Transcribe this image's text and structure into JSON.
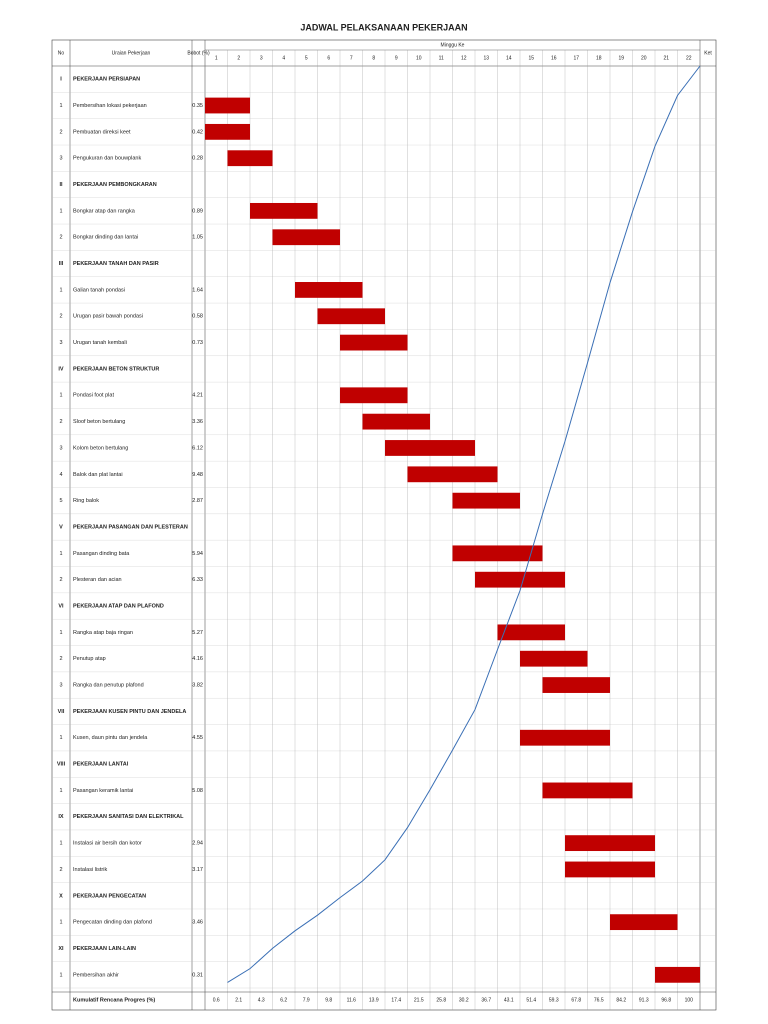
{
  "header": {
    "title": "JADWAL PELAKSANAAN PEKERJAAN",
    "no": "No",
    "item": "Uraian Pekerjaan",
    "weight": "Bobot (%)",
    "weeks_label": "Minggu Ke",
    "note": "Ket"
  },
  "weeks": [
    1,
    2,
    3,
    4,
    5,
    6,
    7,
    8,
    9,
    10,
    11,
    12,
    13,
    14,
    15,
    16,
    17,
    18,
    19,
    20,
    21,
    22
  ],
  "rows": [
    {
      "no": "I",
      "name": "PEKERJAAN PERSIAPAN",
      "weight": null,
      "start": null,
      "end": null
    },
    {
      "no": "1",
      "name": "Pembersihan lokasi pekerjaan",
      "weight": 0.35,
      "start": 1,
      "end": 2
    },
    {
      "no": "2",
      "name": "Pembuatan direksi keet",
      "weight": 0.42,
      "start": 1,
      "end": 2
    },
    {
      "no": "3",
      "name": "Pengukuran dan bouwplank",
      "weight": 0.28,
      "start": 2,
      "end": 3
    },
    {
      "no": "II",
      "name": "PEKERJAAN PEMBONGKARAN",
      "weight": null,
      "start": null,
      "end": null
    },
    {
      "no": "1",
      "name": "Bongkar atap dan rangka",
      "weight": 0.89,
      "start": 3,
      "end": 5
    },
    {
      "no": "2",
      "name": "Bongkar dinding dan lantai",
      "weight": 1.05,
      "start": 4,
      "end": 6
    },
    {
      "no": "III",
      "name": "PEKERJAAN TANAH DAN PASIR",
      "weight": null,
      "start": null,
      "end": null
    },
    {
      "no": "1",
      "name": "Galian tanah pondasi",
      "weight": 1.64,
      "start": 5,
      "end": 7
    },
    {
      "no": "2",
      "name": "Urugan pasir bawah pondasi",
      "weight": 0.58,
      "start": 6,
      "end": 8
    },
    {
      "no": "3",
      "name": "Urugan tanah kembali",
      "weight": 0.73,
      "start": 7,
      "end": 9
    },
    {
      "no": "IV",
      "name": "PEKERJAAN BETON STRUKTUR",
      "weight": null,
      "start": null,
      "end": null
    },
    {
      "no": "1",
      "name": "Pondasi foot plat",
      "weight": 4.21,
      "start": 7,
      "end": 9
    },
    {
      "no": "2",
      "name": "Sloof beton bertulang",
      "weight": 3.36,
      "start": 8,
      "end": 10
    },
    {
      "no": "3",
      "name": "Kolom beton bertulang",
      "weight": 6.12,
      "start": 9,
      "end": 12
    },
    {
      "no": "4",
      "name": "Balok dan plat lantai",
      "weight": 9.48,
      "start": 10,
      "end": 13
    },
    {
      "no": "5",
      "name": "Ring balok",
      "weight": 2.87,
      "start": 12,
      "end": 14
    },
    {
      "no": "V",
      "name": "PEKERJAAN PASANGAN DAN PLESTERAN",
      "weight": null,
      "start": null,
      "end": null
    },
    {
      "no": "1",
      "name": "Pasangan dinding bata",
      "weight": 5.94,
      "start": 12,
      "end": 15
    },
    {
      "no": "2",
      "name": "Plesteran dan acian",
      "weight": 6.33,
      "start": 13,
      "end": 16
    },
    {
      "no": "VI",
      "name": "PEKERJAAN ATAP DAN PLAFOND",
      "weight": null,
      "start": null,
      "end": null
    },
    {
      "no": "1",
      "name": "Rangka atap baja ringan",
      "weight": 5.27,
      "start": 14,
      "end": 16
    },
    {
      "no": "2",
      "name": "Penutup atap",
      "weight": 4.16,
      "start": 15,
      "end": 17
    },
    {
      "no": "3",
      "name": "Rangka dan penutup plafond",
      "weight": 3.82,
      "start": 16,
      "end": 18
    },
    {
      "no": "VII",
      "name": "PEKERJAAN KUSEN PINTU DAN JENDELA",
      "weight": null,
      "start": null,
      "end": null
    },
    {
      "no": "1",
      "name": "Kusen, daun pintu dan jendela",
      "weight": 4.55,
      "start": 15,
      "end": 18
    },
    {
      "no": "VIII",
      "name": "PEKERJAAN LANTAI",
      "weight": null,
      "start": null,
      "end": null
    },
    {
      "no": "1",
      "name": "Pasangan keramik lantai",
      "weight": 5.08,
      "start": 16,
      "end": 19
    },
    {
      "no": "IX",
      "name": "PEKERJAAN SANITASI DAN ELEKTRIKAL",
      "weight": null,
      "start": null,
      "end": null
    },
    {
      "no": "1",
      "name": "Instalasi air bersih dan kotor",
      "weight": 2.94,
      "start": 17,
      "end": 20
    },
    {
      "no": "2",
      "name": "Instalasi listrik",
      "weight": 3.17,
      "start": 17,
      "end": 20
    },
    {
      "no": "X",
      "name": "PEKERJAAN PENGECATAN",
      "weight": null,
      "start": null,
      "end": null
    },
    {
      "no": "1",
      "name": "Pengecatan dinding dan plafond",
      "weight": 3.46,
      "start": 19,
      "end": 21
    },
    {
      "no": "XI",
      "name": "PEKERJAAN LAIN-LAIN",
      "weight": null,
      "start": null,
      "end": null
    },
    {
      "no": "1",
      "name": "Pembersihan akhir",
      "weight": 0.31,
      "start": 21,
      "end": 22
    }
  ],
  "footer": {
    "cumulative_label": "Kumulatif Rencana Progres (%)",
    "cumulative": [
      0.6,
      2.1,
      4.3,
      6.2,
      7.9,
      9.8,
      11.6,
      13.9,
      17.4,
      21.5,
      25.8,
      30.2,
      36.7,
      43.1,
      51.4,
      59.3,
      67.8,
      76.5,
      84.2,
      91.3,
      96.8,
      100
    ]
  }
}
